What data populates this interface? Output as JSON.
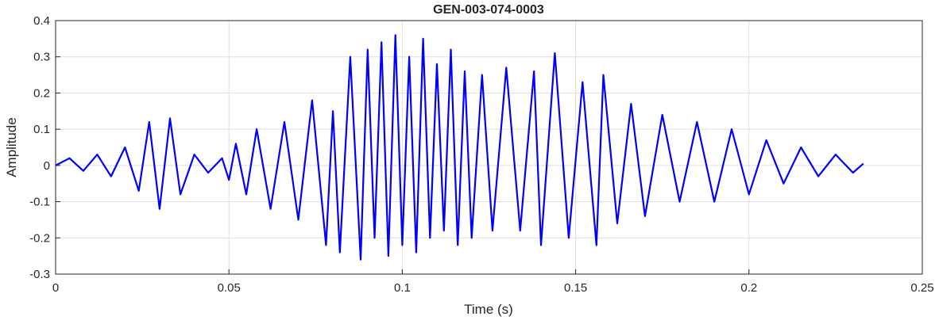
{
  "chart_data": {
    "type": "line",
    "title": "GEN-003-074-0003",
    "xlabel": "Time (s)",
    "ylabel": "Amplitude",
    "xlim": [
      0,
      0.25
    ],
    "ylim": [
      -0.3,
      0.4
    ],
    "xticks": [
      0,
      0.05,
      0.1,
      0.15,
      0.2,
      0.25
    ],
    "xtick_labels": [
      "0",
      "0.05",
      "0.1",
      "0.15",
      "0.2",
      "0.25"
    ],
    "yticks": [
      -0.3,
      -0.2,
      -0.1,
      0,
      0.1,
      0.2,
      0.3,
      0.4
    ],
    "ytick_labels": [
      "-0.3",
      "-0.2",
      "-0.1",
      "0",
      "0.1",
      "0.2",
      "0.3",
      "0.4"
    ],
    "grid": true,
    "line_color": "#0000ff",
    "x": [
      0,
      0.004,
      0.008,
      0.012,
      0.016,
      0.02,
      0.024,
      0.027,
      0.03,
      0.033,
      0.036,
      0.04,
      0.044,
      0.048,
      0.05,
      0.052,
      0.055,
      0.058,
      0.062,
      0.066,
      0.07,
      0.074,
      0.078,
      0.08,
      0.082,
      0.085,
      0.088,
      0.09,
      0.092,
      0.094,
      0.096,
      0.098,
      0.1,
      0.102,
      0.104,
      0.106,
      0.108,
      0.11,
      0.112,
      0.114,
      0.116,
      0.118,
      0.12,
      0.123,
      0.126,
      0.13,
      0.134,
      0.138,
      0.14,
      0.144,
      0.148,
      0.152,
      0.156,
      0.158,
      0.162,
      0.166,
      0.17,
      0.175,
      0.18,
      0.185,
      0.19,
      0.195,
      0.2,
      0.205,
      0.21,
      0.215,
      0.22,
      0.225,
      0.23,
      0.233
    ],
    "values": [
      0,
      0.02,
      -0.015,
      0.03,
      -0.03,
      0.05,
      -0.07,
      0.12,
      -0.12,
      0.13,
      -0.08,
      0.03,
      -0.02,
      0.02,
      -0.04,
      0.06,
      -0.08,
      0.1,
      -0.12,
      0.12,
      -0.15,
      0.18,
      -0.22,
      0.15,
      -0.24,
      0.3,
      -0.26,
      0.32,
      -0.2,
      0.34,
      -0.25,
      0.36,
      -0.22,
      0.3,
      -0.24,
      0.35,
      -0.2,
      0.28,
      -0.18,
      0.32,
      -0.22,
      0.26,
      -0.2,
      0.25,
      -0.18,
      0.27,
      -0.18,
      0.26,
      -0.22,
      0.31,
      -0.2,
      0.23,
      -0.22,
      0.25,
      -0.16,
      0.17,
      -0.14,
      0.14,
      -0.1,
      0.12,
      -0.1,
      0.1,
      -0.08,
      0.07,
      -0.05,
      0.05,
      -0.03,
      0.03,
      -0.02,
      0.005
    ]
  }
}
